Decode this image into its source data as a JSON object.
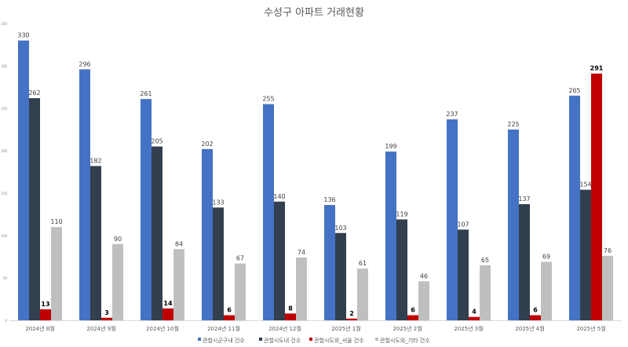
{
  "chart_data": {
    "type": "bar",
    "title": "수성구 아파트 거래현황",
    "categories": [
      "2024년 8월",
      "2024년 9월",
      "2024년 10월",
      "2024년 11월",
      "2024년 12월",
      "2025년 1월",
      "2025년 2월",
      "2025년 3월",
      "2025년 4월",
      "2025년 5월"
    ],
    "ylim": [
      0,
      350
    ],
    "yticks": [
      0,
      50,
      100,
      150,
      200,
      250,
      300,
      350
    ],
    "grid": false,
    "legend_position": "bottom",
    "series": [
      {
        "name": "관할시군구내 건수",
        "color": "#4472C4",
        "values": [
          330,
          296,
          261,
          202,
          255,
          136,
          199,
          237,
          225,
          265
        ]
      },
      {
        "name": "관할시도내 건수",
        "color": "#323F4F",
        "values": [
          262,
          182,
          205,
          133,
          140,
          103,
          119,
          107,
          137,
          154
        ]
      },
      {
        "name": "관할시도외_서울 건수",
        "color": "#C00000",
        "values": [
          13,
          3,
          14,
          6,
          8,
          2,
          6,
          4,
          6,
          291
        ]
      },
      {
        "name": "관할시도외_기타 건수",
        "color": "#BFBFBF",
        "values": [
          110,
          90,
          84,
          67,
          74,
          61,
          46,
          65,
          69,
          76
        ]
      }
    ]
  }
}
